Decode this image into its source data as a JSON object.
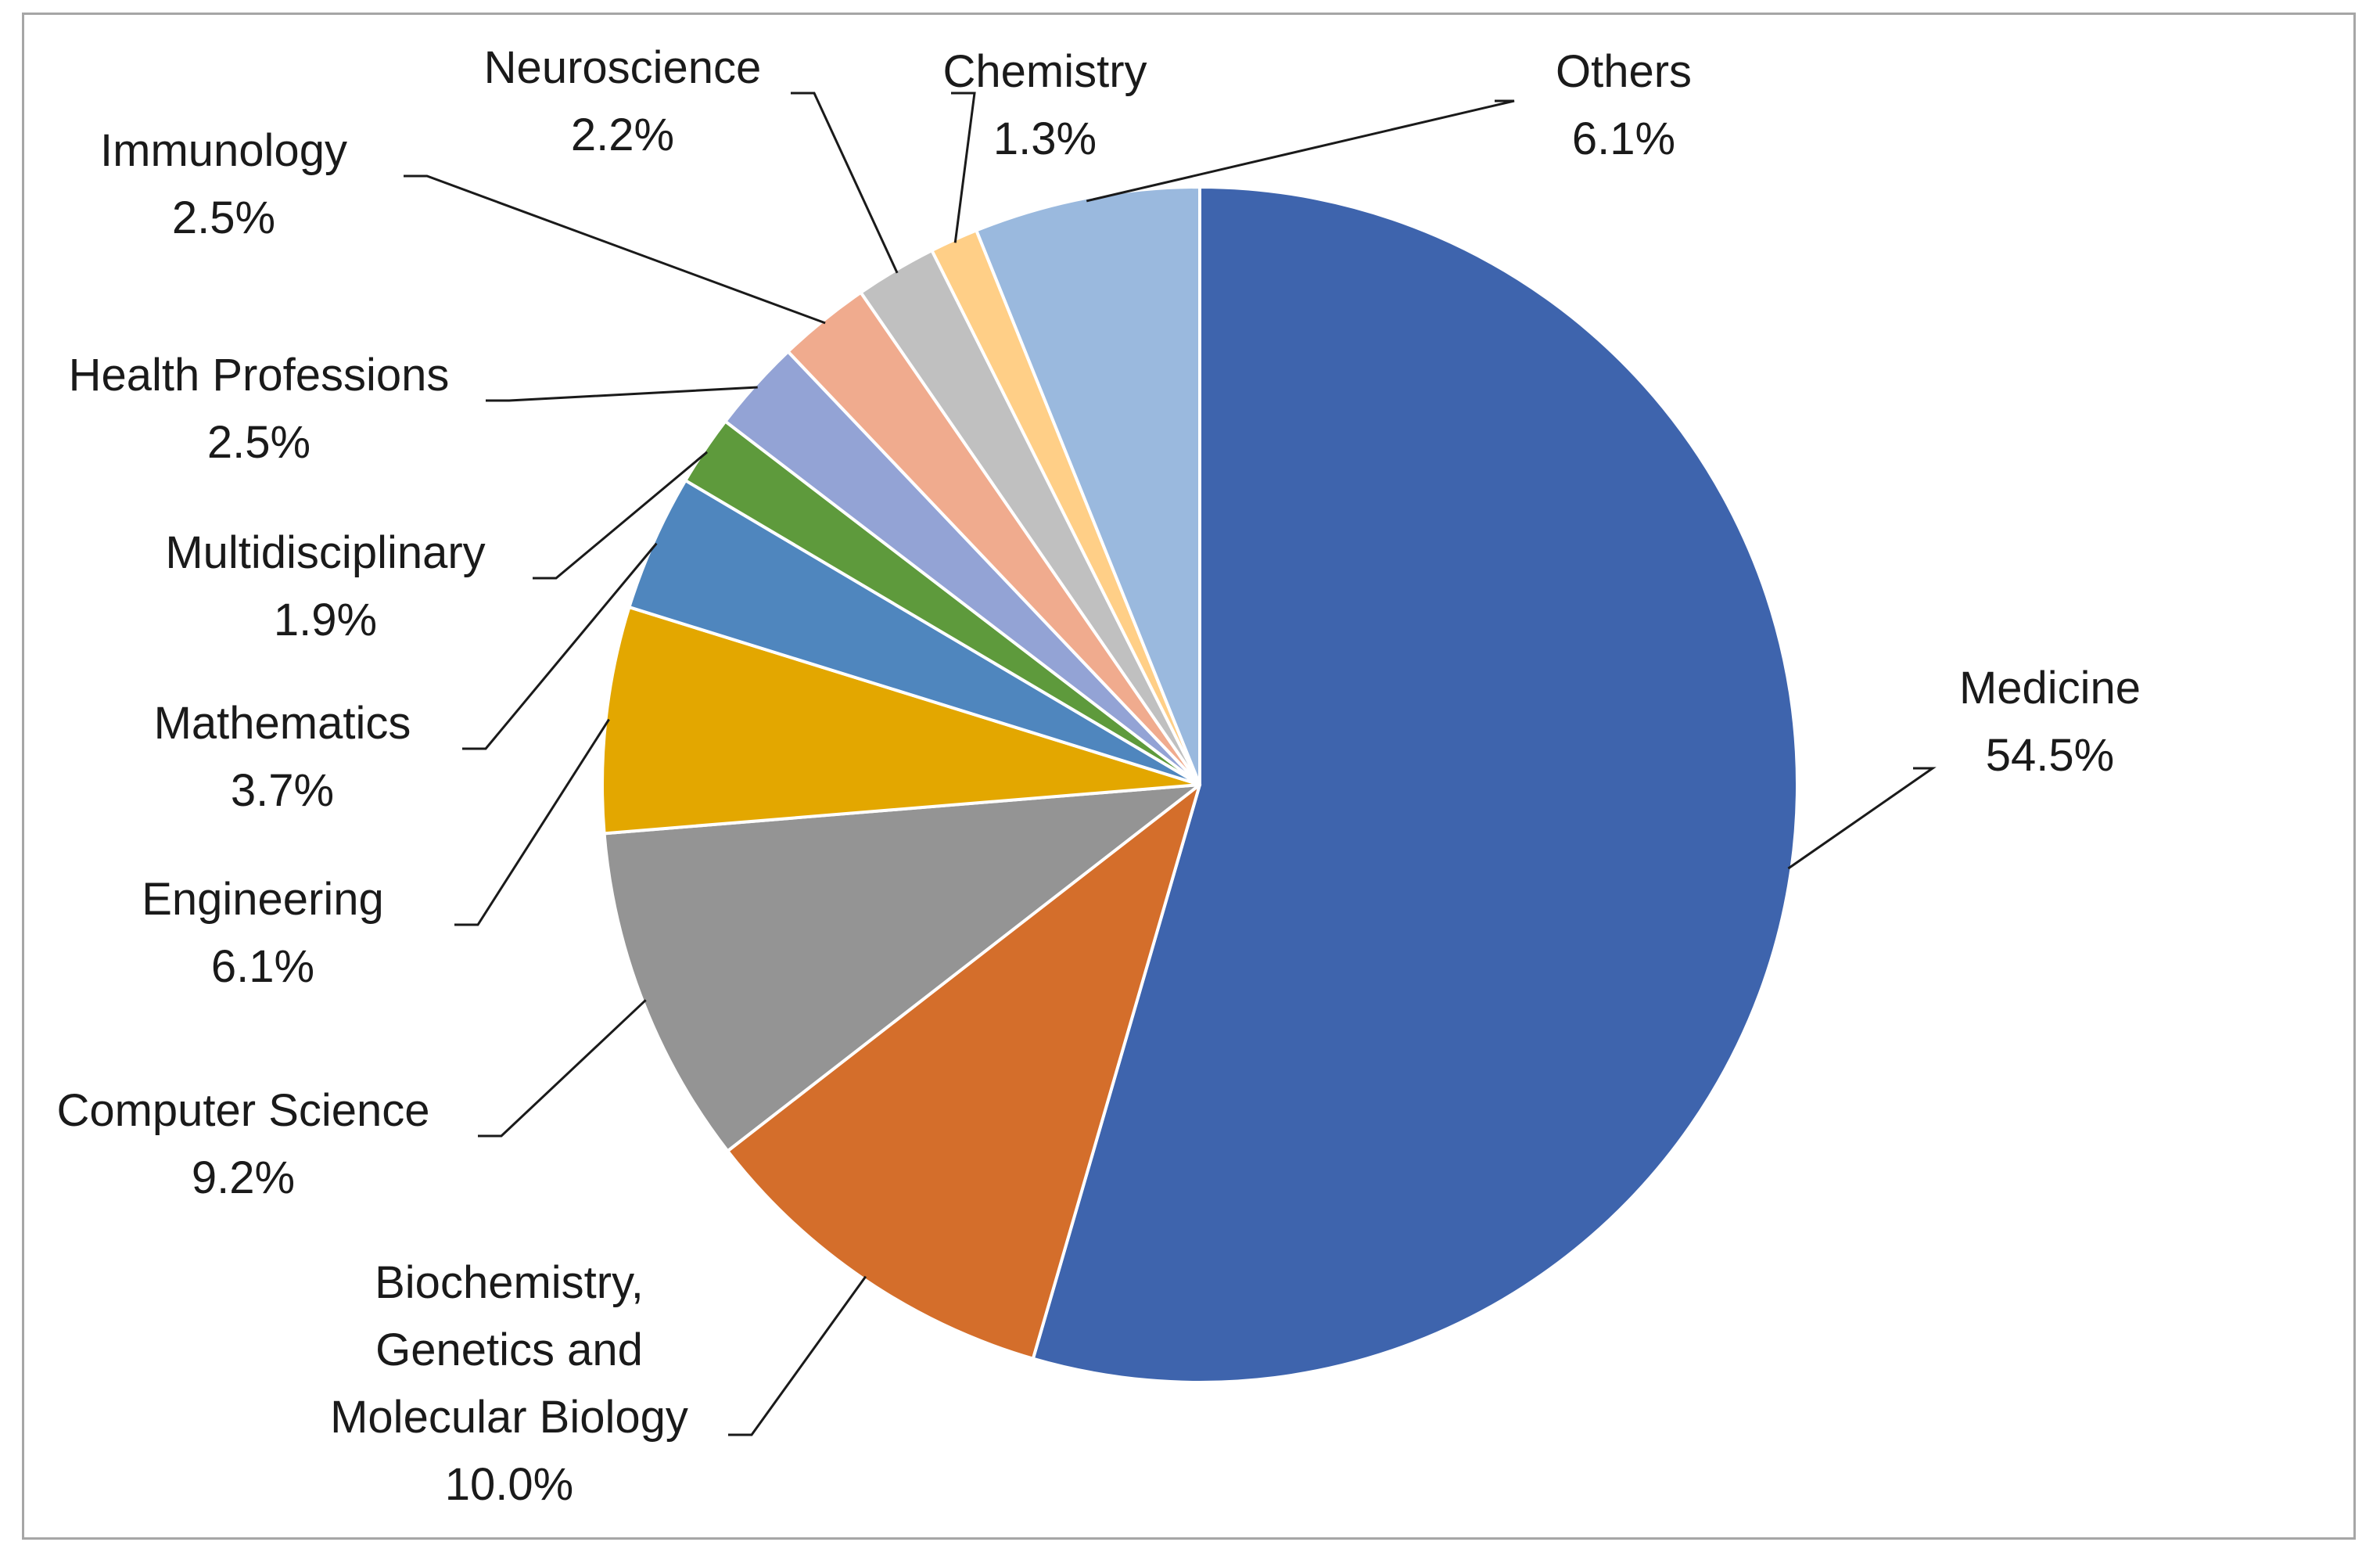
{
  "chart_data": {
    "type": "pie",
    "title": "",
    "start_angle_deg": 0,
    "direction": "clockwise",
    "legend": "none",
    "data_labels": "category name and percentage, outside with leader lines",
    "slices": [
      {
        "label": "Medicine",
        "value": 54.5,
        "value_label": "54.5%",
        "color": "#3E64AD"
      },
      {
        "label": "Biochemistry, Genetics and Molecular Biology",
        "label_lines": [
          "Biochemistry,",
          "Genetics and",
          "Molecular Biology"
        ],
        "value": 10.0,
        "value_label": "10.0%",
        "color": "#D46E2B"
      },
      {
        "label": "Computer Science",
        "value": 9.2,
        "value_label": "9.2%",
        "color": "#949494"
      },
      {
        "label": "Engineering",
        "value": 6.1,
        "value_label": "6.1%",
        "color": "#E3A700"
      },
      {
        "label": "Mathematics",
        "value": 3.7,
        "value_label": "3.7%",
        "color": "#4F86BE"
      },
      {
        "label": "Multidisciplinary",
        "value": 1.9,
        "value_label": "1.9%",
        "color": "#5E9A3C"
      },
      {
        "label": "Health Professions",
        "value": 2.5,
        "value_label": "2.5%",
        "color": "#93A3D5"
      },
      {
        "label": "Immunology",
        "value": 2.5,
        "value_label": "2.5%",
        "color": "#F0AB8E"
      },
      {
        "label": "Neuroscience",
        "value": 2.2,
        "value_label": "2.2%",
        "color": "#C0C0C0"
      },
      {
        "label": "Chemistry",
        "value": 1.3,
        "value_label": "1.3%",
        "color": "#FFCF87"
      },
      {
        "label": "Others",
        "value": 6.1,
        "value_label": "6.1%",
        "color": "#9AB9DE"
      }
    ]
  }
}
